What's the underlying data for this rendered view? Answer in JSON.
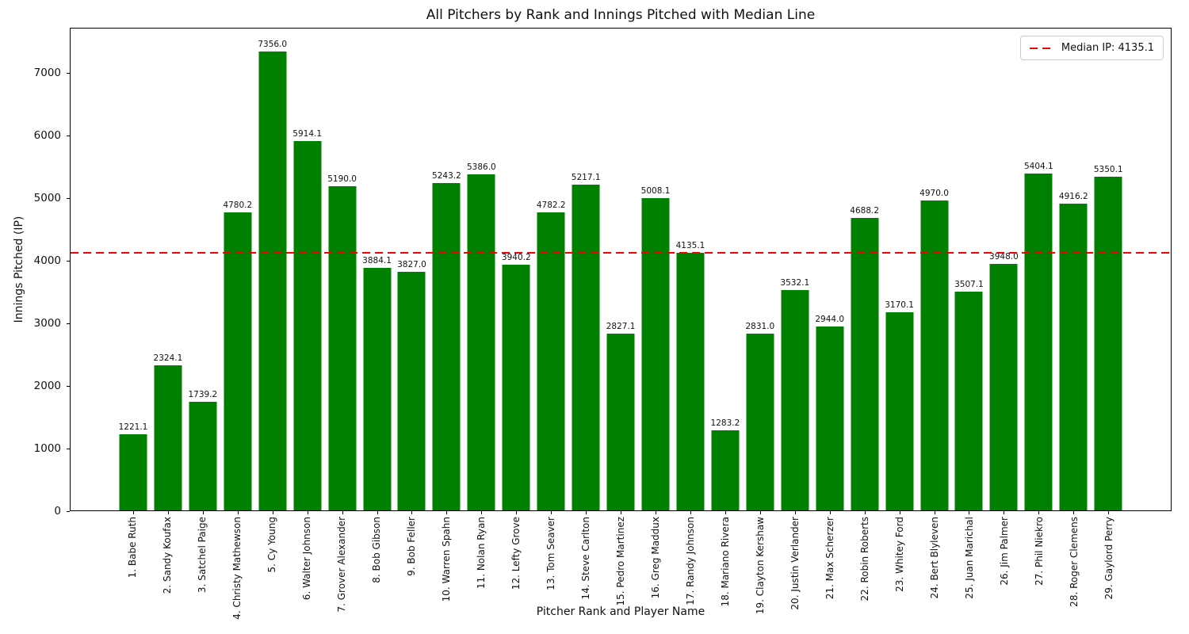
{
  "chart_data": {
    "type": "bar",
    "title": "All Pitchers by Rank and Innings Pitched with Median Line",
    "xlabel": "Pitcher Rank and Player Name",
    "ylabel": "Innings Pitched (IP)",
    "categories": [
      "1. Babe Ruth",
      "2. Sandy Koufax",
      "3. Satchel Paige",
      "4. Christy Mathewson",
      "5. Cy Young",
      "6. Walter Johnson",
      "7. Grover Alexander",
      "8. Bob Gibson",
      "9. Bob Feller",
      "10. Warren Spahn",
      "11. Nolan Ryan",
      "12. Lefty Grove",
      "13. Tom Seaver",
      "14. Steve Carlton",
      "15. Pedro Martinez",
      "16. Greg Maddux",
      "17. Randy Johnson",
      "18. Mariano Rivera",
      "19. Clayton Kershaw",
      "20. Justin Verlander",
      "21. Max Scherzer",
      "22. Robin Roberts",
      "23. Whitey Ford",
      "24. Bert Blyleven",
      "25. Juan Marichal",
      "26. Jim Palmer",
      "27. Phil Niekro",
      "28. Roger Clemens",
      "29. Gaylord Perry"
    ],
    "values": [
      1221.1,
      2324.1,
      1739.2,
      4780.2,
      7356.0,
      5914.1,
      5190.0,
      3884.1,
      3827.0,
      5243.2,
      5386.0,
      3940.2,
      4782.2,
      5217.1,
      2827.1,
      5008.1,
      4135.1,
      1283.2,
      2831.0,
      3532.1,
      2944.0,
      4688.2,
      3170.1,
      4970.0,
      3507.1,
      3948.0,
      5404.1,
      4916.2,
      5350.1
    ],
    "bar_color": "#008000",
    "ylim": [
      0,
      7724
    ],
    "yticks": [
      0,
      1000,
      2000,
      3000,
      4000,
      5000,
      6000,
      7000
    ],
    "grid": false,
    "legend_position": "upper right",
    "median": {
      "value": 4135.1,
      "label": "Median IP: 4135.1",
      "color": "#f00000",
      "style": "dashed"
    }
  }
}
